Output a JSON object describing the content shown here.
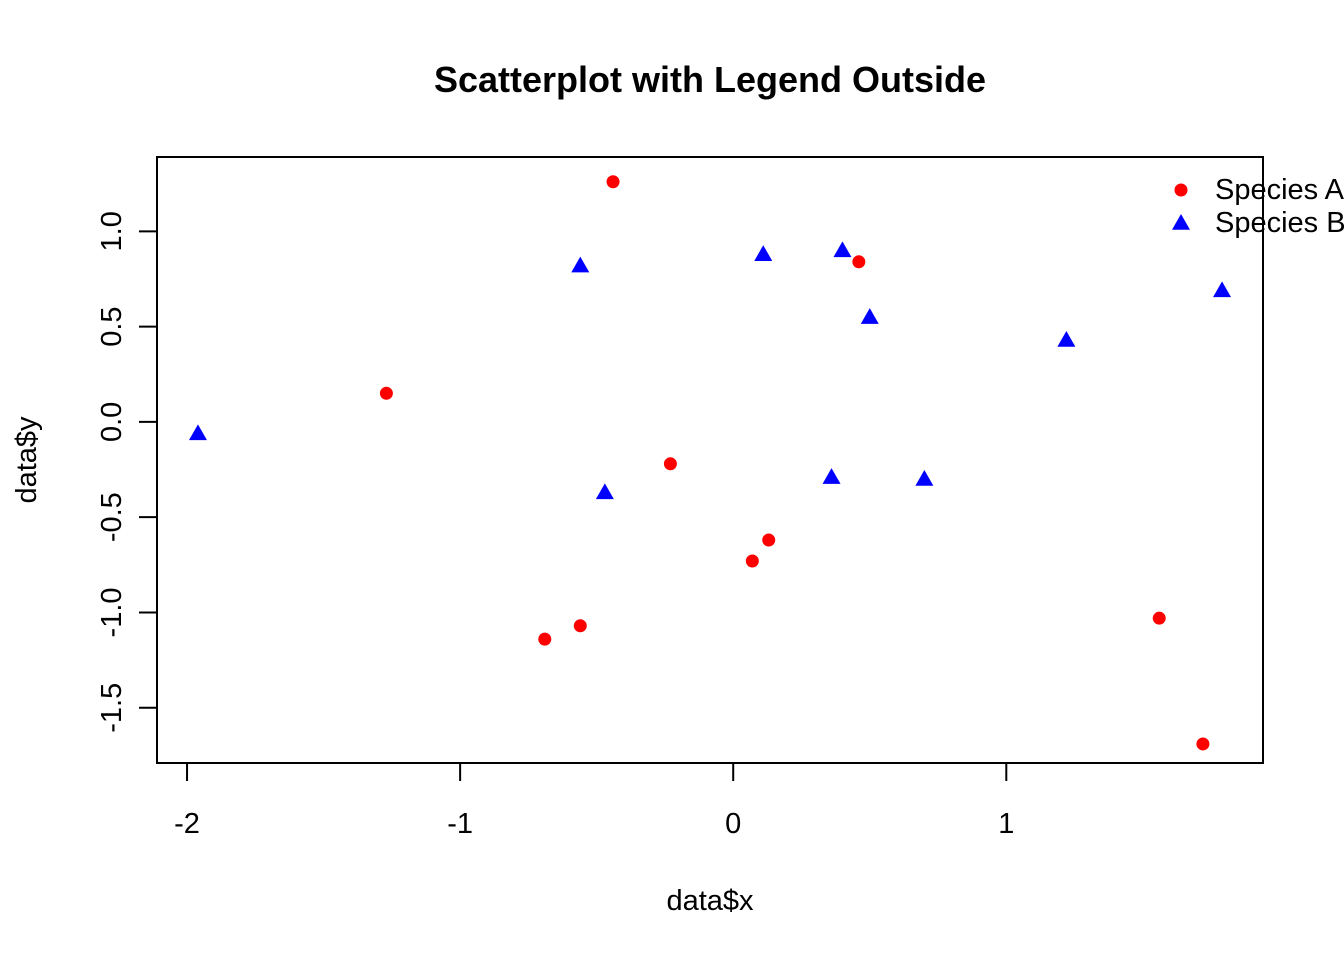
{
  "chart_data": {
    "type": "scatter",
    "title": "Scatterplot with Legend Outside",
    "xlabel": "data$x",
    "ylabel": "data$y",
    "xlim": [
      -2.11,
      1.94
    ],
    "ylim": [
      -1.79,
      1.39
    ],
    "x_ticks": [
      -2,
      -1,
      0,
      1
    ],
    "x_tick_labels": [
      "-2",
      "-1",
      "0",
      "1"
    ],
    "y_ticks": [
      -1.5,
      -1.0,
      -0.5,
      0.0,
      0.5,
      1.0
    ],
    "y_tick_labels": [
      "-1.5",
      "-1.0",
      "-0.5",
      "0.0",
      "0.5",
      "1.0"
    ],
    "grid": false,
    "legend_position": "top-right outside",
    "series": [
      {
        "name": "Species A",
        "marker": "circle",
        "color": "#ff0000",
        "points": [
          {
            "x": -1.27,
            "y": 0.15
          },
          {
            "x": -0.44,
            "y": 1.26
          },
          {
            "x": -0.69,
            "y": -1.14
          },
          {
            "x": -0.56,
            "y": -1.07
          },
          {
            "x": -0.23,
            "y": -0.22
          },
          {
            "x": 0.07,
            "y": -0.73
          },
          {
            "x": 0.13,
            "y": -0.62
          },
          {
            "x": 0.46,
            "y": 0.84
          },
          {
            "x": 1.56,
            "y": -1.03
          },
          {
            "x": 1.72,
            "y": -1.69
          }
        ]
      },
      {
        "name": "Species B",
        "marker": "triangle",
        "color": "#0000ff",
        "points": [
          {
            "x": -1.96,
            "y": -0.06
          },
          {
            "x": -0.56,
            "y": 0.82
          },
          {
            "x": -0.47,
            "y": -0.37
          },
          {
            "x": 0.11,
            "y": 0.88
          },
          {
            "x": 0.36,
            "y": -0.29
          },
          {
            "x": 0.4,
            "y": 0.9
          },
          {
            "x": 0.5,
            "y": 0.55
          },
          {
            "x": 0.7,
            "y": -0.3
          },
          {
            "x": 1.22,
            "y": 0.43
          },
          {
            "x": 1.79,
            "y": 0.69
          }
        ]
      }
    ]
  }
}
